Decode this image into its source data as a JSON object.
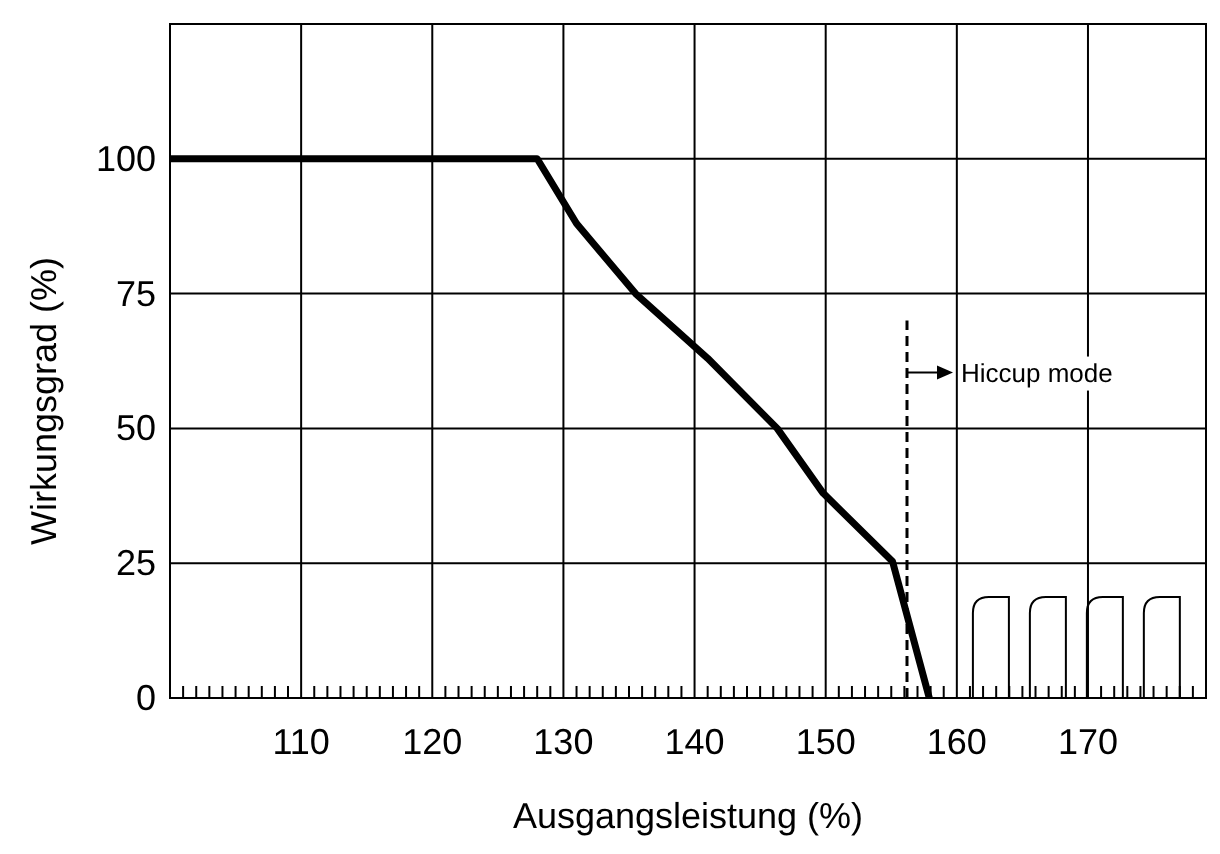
{
  "chart_data": {
    "type": "line",
    "xlabel": "Ausgangsleistung (%)",
    "ylabel": "Wirkungsgrad (%)",
    "x": [
      100,
      128,
      131,
      135.5,
      141,
      146.3,
      149.8,
      155.1,
      157.9
    ],
    "series": [
      {
        "color": "#000000",
        "values": [
          100,
          100,
          88,
          75,
          63,
          50,
          38,
          25.3,
          0
        ]
      }
    ],
    "xlim": [
      100,
      179
    ],
    "ylim": [
      0,
      125
    ],
    "xticks": [
      {
        "value": 101,
        "label": null
      },
      {
        "value": 102,
        "label": null
      },
      {
        "value": 103,
        "label": null
      },
      {
        "value": 104,
        "label": null
      },
      {
        "value": 105,
        "label": null
      },
      {
        "value": 106,
        "label": null
      },
      {
        "value": 107,
        "label": null
      },
      {
        "value": 108,
        "label": null
      },
      {
        "value": 109,
        "label": null
      },
      110,
      {
        "value": 111,
        "label": null
      },
      {
        "value": 112,
        "label": null
      },
      {
        "value": 113,
        "label": null
      },
      {
        "value": 114,
        "label": null
      },
      {
        "value": 115,
        "label": null
      },
      {
        "value": 116,
        "label": null
      },
      {
        "value": 117,
        "label": null
      },
      {
        "value": 118,
        "label": null
      },
      {
        "value": 119,
        "label": null
      },
      120,
      {
        "value": 121,
        "label": null
      },
      {
        "value": 122,
        "label": null
      },
      {
        "value": 123,
        "label": null
      },
      {
        "value": 124,
        "label": null
      },
      {
        "value": 125,
        "label": null
      },
      {
        "value": 126,
        "label": null
      },
      {
        "value": 127,
        "label": null
      },
      {
        "value": 128,
        "label": null
      },
      {
        "value": 129,
        "label": null
      },
      130,
      {
        "value": 131,
        "label": null
      },
      {
        "value": 132,
        "label": null
      },
      {
        "value": 133,
        "label": null
      },
      {
        "value": 134,
        "label": null
      },
      {
        "value": 135,
        "label": null
      },
      {
        "value": 136,
        "label": null
      },
      {
        "value": 137,
        "label": null
      },
      {
        "value": 138,
        "label": null
      },
      {
        "value": 139,
        "label": null
      },
      140,
      {
        "value": 141,
        "label": null
      },
      {
        "value": 142,
        "label": null
      },
      {
        "value": 143,
        "label": null
      },
      {
        "value": 144,
        "label": null
      },
      {
        "value": 145,
        "label": null
      },
      {
        "value": 146,
        "label": null
      },
      {
        "value": 147,
        "label": null
      },
      {
        "value": 148,
        "label": null
      },
      {
        "value": 149,
        "label": null
      },
      150,
      {
        "value": 151,
        "label": null
      },
      {
        "value": 152,
        "label": null
      },
      {
        "value": 153,
        "label": null
      },
      {
        "value": 154,
        "label": null
      },
      {
        "value": 155,
        "label": null
      },
      {
        "value": 156,
        "label": null
      },
      {
        "value": 157,
        "label": null
      },
      {
        "value": 158,
        "label": null
      },
      {
        "value": 159,
        "label": null
      },
      160,
      {
        "value": 161,
        "label": null
      },
      {
        "value": 162,
        "label": null
      },
      {
        "value": 163,
        "label": null
      },
      {
        "value": 164,
        "label": null
      },
      {
        "value": 165,
        "label": null
      },
      {
        "value": 166,
        "label": null
      },
      {
        "value": 167,
        "label": null
      },
      {
        "value": 168,
        "label": null
      },
      {
        "value": 169,
        "label": null
      },
      170,
      {
        "value": 171,
        "label": null
      },
      {
        "value": 172,
        "label": null
      },
      {
        "value": 173,
        "label": null
      },
      {
        "value": 174,
        "label": null
      },
      {
        "value": 175,
        "label": null
      },
      {
        "value": 176,
        "label": null
      },
      {
        "value": 177,
        "label": null
      },
      {
        "value": 178,
        "label": null
      }
    ],
    "yticks": [
      0,
      25,
      50,
      75,
      100
    ],
    "grid": true,
    "ref_lines": [
      {
        "axis": "x",
        "value": 156.2,
        "label": "Hiccup mode",
        "line_style": "dashed"
      }
    ]
  }
}
